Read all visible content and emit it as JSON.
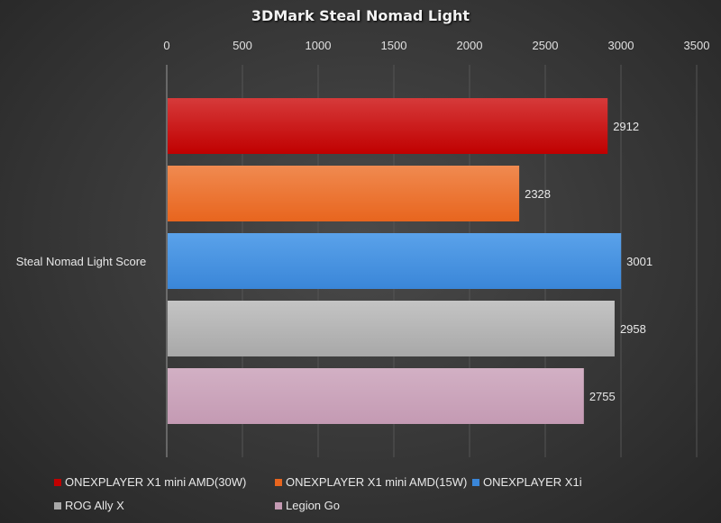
{
  "chart_data": {
    "type": "bar",
    "orientation": "horizontal",
    "title": "3DMark Steal Nomad Light",
    "categories": [
      "Steal Nomad Light Score"
    ],
    "xlim": [
      0,
      3500
    ],
    "ticks": [
      "0",
      "500",
      "1000",
      "1500",
      "2000",
      "2500",
      "3000",
      "3500"
    ],
    "tick_values": [
      0,
      500,
      1000,
      1500,
      2000,
      2500,
      3000,
      3500
    ],
    "grid": true,
    "legend_position": "bottom",
    "series": [
      {
        "name": "ONEXPLAYER X1 mini AMD(30W)",
        "values": [
          2912
        ],
        "label": "2912",
        "color": "#c00000",
        "color_light": "#d63a3a"
      },
      {
        "name": "ONEXPLAYER X1 mini AMD(15W)",
        "values": [
          2328
        ],
        "label": "2328",
        "color": "#e8651e",
        "color_light": "#f08a50"
      },
      {
        "name": "ONEXPLAYER X1i",
        "values": [
          3001
        ],
        "label": "3001",
        "color": "#3a86d8",
        "color_light": "#5aa2ea"
      },
      {
        "name": "ROG Ally X",
        "values": [
          2958
        ],
        "label": "2958",
        "color": "#a8a8a8",
        "color_light": "#c4c4c4"
      },
      {
        "name": "Legion Go",
        "values": [
          2755
        ],
        "label": "2755",
        "color": "#c49ab3",
        "color_light": "#d2b0c4"
      }
    ]
  }
}
